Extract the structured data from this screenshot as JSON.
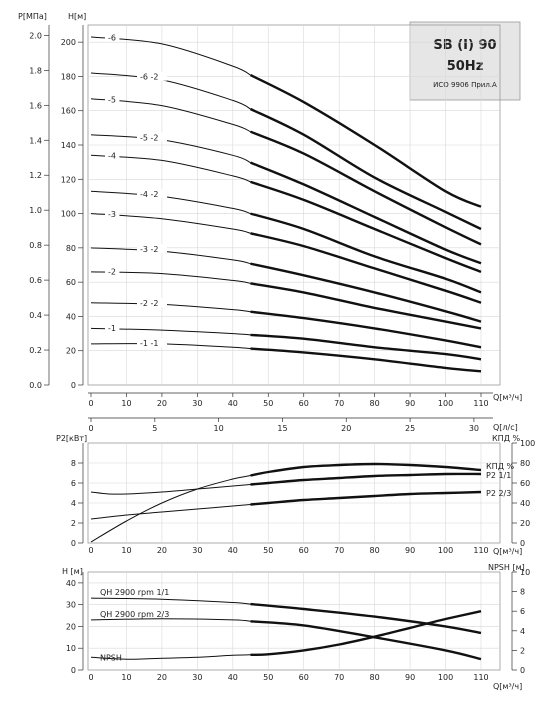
{
  "info_box": {
    "model": "SB (I) 90",
    "frequency": "50Hz",
    "standard": "ИСО 9906 Прил.А"
  },
  "chart_data": [
    {
      "type": "line",
      "name": "head",
      "p_axis": {
        "label": "P[МПа]",
        "ticks": [
          0.0,
          0.2,
          0.4,
          0.6,
          0.8,
          1.0,
          1.2,
          1.4,
          1.6,
          1.8,
          2.0
        ]
      },
      "h_axis": {
        "label": "H[м]",
        "ticks": [
          0,
          20,
          40,
          60,
          80,
          100,
          120,
          140,
          160,
          180,
          200
        ],
        "ylim": [
          0,
          210
        ]
      },
      "q_axis": {
        "label": "Q[м³/ч]",
        "ticks": [
          0,
          10,
          20,
          30,
          40,
          50,
          60,
          70,
          80,
          90,
          100,
          110
        ],
        "xlim": [
          0,
          112
        ]
      },
      "q2_axis": {
        "label": "Q[л/с]",
        "ticks": [
          0,
          5,
          10,
          15,
          20,
          25,
          30
        ]
      },
      "operating_range": [
        45,
        110
      ],
      "series": [
        {
          "name": "-6",
          "points": [
            [
              0,
              203
            ],
            [
              20,
              199
            ],
            [
              40,
              186
            ],
            [
              60,
              165
            ],
            [
              80,
              140
            ],
            [
              100,
              113
            ],
            [
              110,
              104
            ]
          ]
        },
        {
          "name": "-6 -2",
          "points": [
            [
              0,
              182
            ],
            [
              20,
              178
            ],
            [
              40,
              166
            ],
            [
              60,
              146
            ],
            [
              80,
              121
            ],
            [
              100,
              101
            ],
            [
              110,
              91
            ]
          ]
        },
        {
          "name": "-5",
          "points": [
            [
              0,
              167
            ],
            [
              20,
              163
            ],
            [
              40,
              152
            ],
            [
              60,
              135
            ],
            [
              80,
              113
            ],
            [
              100,
              92
            ],
            [
              110,
              82
            ]
          ]
        },
        {
          "name": "-5 -2",
          "points": [
            [
              0,
              146
            ],
            [
              20,
              143
            ],
            [
              40,
              134
            ],
            [
              60,
              117
            ],
            [
              80,
              98
            ],
            [
              100,
              79
            ],
            [
              110,
              71
            ]
          ]
        },
        {
          "name": "-4",
          "points": [
            [
              0,
              134
            ],
            [
              20,
              131
            ],
            [
              40,
              122
            ],
            [
              60,
              108
            ],
            [
              80,
              91
            ],
            [
              100,
              74
            ],
            [
              110,
              66
            ]
          ]
        },
        {
          "name": "-4 -2",
          "points": [
            [
              0,
              113
            ],
            [
              20,
              110
            ],
            [
              40,
              103
            ],
            [
              60,
              91
            ],
            [
              80,
              75
            ],
            [
              100,
              62
            ],
            [
              110,
              54
            ]
          ]
        },
        {
          "name": "-3",
          "points": [
            [
              0,
              100
            ],
            [
              20,
              97
            ],
            [
              40,
              91
            ],
            [
              60,
              81
            ],
            [
              80,
              68
            ],
            [
              100,
              55
            ],
            [
              110,
              48
            ]
          ]
        },
        {
          "name": "-3 -2",
          "points": [
            [
              0,
              80
            ],
            [
              20,
              78
            ],
            [
              40,
              73
            ],
            [
              60,
              64
            ],
            [
              80,
              54
            ],
            [
              100,
              43
            ],
            [
              110,
              37
            ]
          ]
        },
        {
          "name": "-2",
          "points": [
            [
              0,
              66
            ],
            [
              20,
              65
            ],
            [
              40,
              61
            ],
            [
              60,
              54
            ],
            [
              80,
              45
            ],
            [
              100,
              37
            ],
            [
              110,
              33
            ]
          ]
        },
        {
          "name": "-2 -2",
          "points": [
            [
              0,
              48
            ],
            [
              20,
              47
            ],
            [
              40,
              44
            ],
            [
              60,
              39
            ],
            [
              80,
              33
            ],
            [
              100,
              26
            ],
            [
              110,
              22
            ]
          ]
        },
        {
          "name": "-1",
          "points": [
            [
              0,
              33
            ],
            [
              20,
              32
            ],
            [
              40,
              30
            ],
            [
              60,
              27
            ],
            [
              80,
              22
            ],
            [
              100,
              18
            ],
            [
              110,
              15
            ]
          ]
        },
        {
          "name": "-1 -1",
          "points": [
            [
              0,
              24
            ],
            [
              20,
              24
            ],
            [
              40,
              22
            ],
            [
              60,
              19
            ],
            [
              80,
              15
            ],
            [
              100,
              10
            ],
            [
              110,
              8
            ]
          ]
        }
      ]
    },
    {
      "type": "line",
      "name": "power",
      "p2_axis": {
        "label": "P2[кВт]",
        "ticks": [
          0,
          2,
          4,
          6,
          8
        ],
        "ylim": [
          0,
          10
        ]
      },
      "eff_axis": {
        "label": "КПД %",
        "ticks": [
          0,
          20,
          40,
          60,
          80,
          100
        ],
        "ylim": [
          0,
          100
        ]
      },
      "q_axis": {
        "label": "Q[м³/ч]",
        "ticks": [
          0,
          10,
          20,
          30,
          40,
          50,
          60,
          70,
          80,
          90,
          100,
          110
        ]
      },
      "series": [
        {
          "name": "КПД %",
          "axis": "eff",
          "points": [
            [
              0,
              1
            ],
            [
              10,
              22
            ],
            [
              20,
              40
            ],
            [
              30,
              54
            ],
            [
              40,
              64
            ],
            [
              50,
              71
            ],
            [
              60,
              76
            ],
            [
              70,
              78
            ],
            [
              80,
              79
            ],
            [
              90,
              78
            ],
            [
              100,
              76
            ],
            [
              110,
              73
            ]
          ]
        },
        {
          "name": "P2 1/1",
          "axis": "p2",
          "points": [
            [
              0,
              5.1
            ],
            [
              5,
              4.9
            ],
            [
              10,
              4.9
            ],
            [
              20,
              5.1
            ],
            [
              30,
              5.4
            ],
            [
              40,
              5.7
            ],
            [
              50,
              6.0
            ],
            [
              60,
              6.3
            ],
            [
              70,
              6.5
            ],
            [
              80,
              6.7
            ],
            [
              90,
              6.8
            ],
            [
              100,
              6.9
            ],
            [
              110,
              6.9
            ]
          ]
        },
        {
          "name": "P2 2/3",
          "axis": "p2",
          "points": [
            [
              0,
              2.4
            ],
            [
              10,
              2.8
            ],
            [
              20,
              3.1
            ],
            [
              30,
              3.4
            ],
            [
              40,
              3.7
            ],
            [
              50,
              4.0
            ],
            [
              60,
              4.3
            ],
            [
              70,
              4.5
            ],
            [
              80,
              4.7
            ],
            [
              90,
              4.9
            ],
            [
              100,
              5.0
            ],
            [
              110,
              5.1
            ]
          ]
        }
      ]
    },
    {
      "type": "line",
      "name": "npsh",
      "h_axis": {
        "label": "H [м]",
        "ticks": [
          0,
          10,
          20,
          30,
          40
        ],
        "ylim": [
          0,
          45
        ]
      },
      "npsh_axis": {
        "label": "NPSH [м]",
        "ticks": [
          0,
          2,
          4,
          6,
          8,
          10
        ],
        "ylim": [
          0,
          10
        ]
      },
      "q_axis": {
        "label": "Q[м³/ч]",
        "ticks": [
          0,
          10,
          20,
          30,
          40,
          50,
          60,
          70,
          80,
          90,
          100,
          110
        ]
      },
      "series": [
        {
          "name": "QH 2900 rpm 1/1",
          "axis": "h",
          "points": [
            [
              0,
              33
            ],
            [
              20,
              32.5
            ],
            [
              40,
              31
            ],
            [
              60,
              28
            ],
            [
              80,
              24.5
            ],
            [
              100,
              20
            ],
            [
              110,
              17
            ]
          ]
        },
        {
          "name": "QH 2900 rpm 2/3",
          "axis": "h",
          "points": [
            [
              0,
              23
            ],
            [
              20,
              23.5
            ],
            [
              40,
              23
            ],
            [
              60,
              20.5
            ],
            [
              80,
              15
            ],
            [
              100,
              9
            ],
            [
              110,
              5
            ]
          ]
        },
        {
          "name": "NPSH",
          "axis": "npsh",
          "points": [
            [
              0,
              1.3
            ],
            [
              10,
              1.1
            ],
            [
              20,
              1.2
            ],
            [
              30,
              1.3
            ],
            [
              40,
              1.5
            ],
            [
              50,
              1.6
            ],
            [
              60,
              2.0
            ],
            [
              70,
              2.6
            ],
            [
              80,
              3.4
            ],
            [
              90,
              4.3
            ],
            [
              100,
              5.2
            ],
            [
              110,
              6.0
            ]
          ]
        }
      ]
    }
  ]
}
